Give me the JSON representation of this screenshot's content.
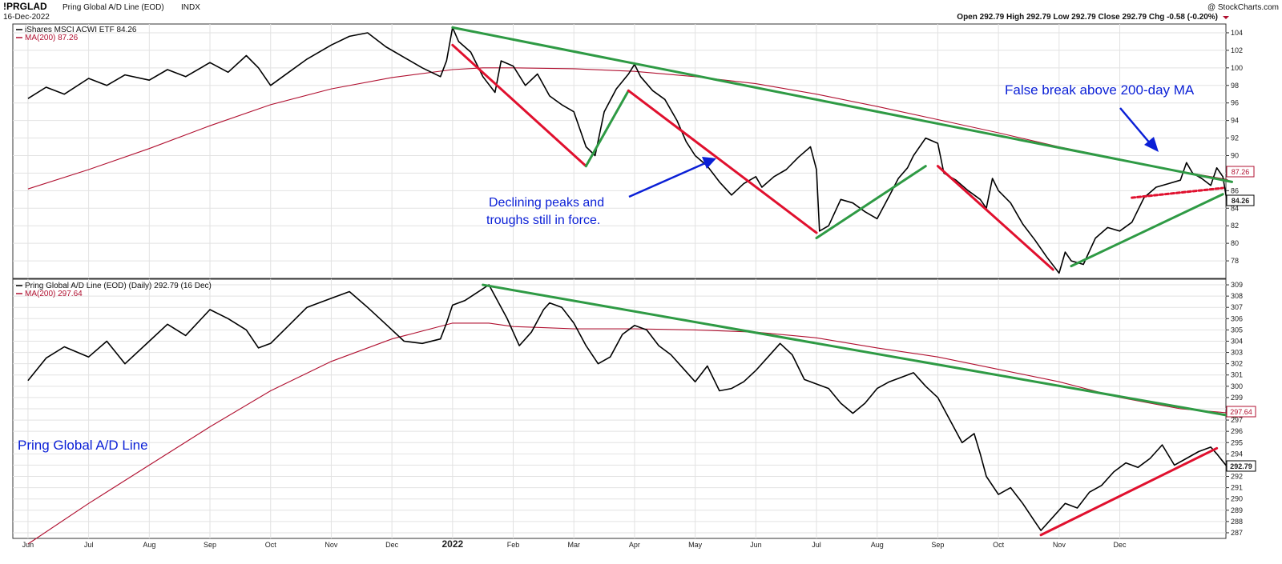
{
  "header": {
    "symbol": "!PRGLAD",
    "name": "Pring Global A/D Line (EOD)",
    "exchange": "INDX",
    "date": "16-Dec-2022",
    "copyright": "@ StockCharts.com",
    "ohlc": "Open 292.79  High 292.79  Low 292.79  Close 292.79  Chg -0.58 (-0.20%)"
  },
  "colors": {
    "price": "#000000",
    "ma": "#b01030",
    "green_trend": "#2e9a44",
    "red_trend": "#e0102e",
    "annotation": "#0a1fd6"
  },
  "x_axis": {
    "labels": [
      "Jun",
      "Jul",
      "Aug",
      "Sep",
      "Oct",
      "Nov",
      "Dec",
      "2022",
      "Feb",
      "Mar",
      "Apr",
      "May",
      "Jun",
      "Jul",
      "Aug",
      "Sep",
      "Oct",
      "Nov",
      "Dec"
    ]
  },
  "annotations": {
    "false_break": "False break above 200-day MA",
    "declining_1": "Declining peaks and",
    "declining_2": "troughs still in force.",
    "ad_line": "Pring Global A/D Line"
  },
  "chart_data": [
    {
      "type": "line",
      "panel": "top",
      "legend": [
        "iShares MSCI ACWI ETF 84.26",
        "MA(200) 87.26"
      ],
      "ylim": [
        76,
        105
      ],
      "y_ticks": [
        78,
        80,
        82,
        84,
        86,
        88,
        90,
        92,
        94,
        96,
        98,
        100,
        102,
        104
      ],
      "last_value": "84.26",
      "ma_value": "87.26",
      "series": [
        {
          "name": "iShares MSCI ACWI ETF",
          "points": [
            [
              0,
              96.5
            ],
            [
              0.3,
              97.8
            ],
            [
              0.6,
              97.0
            ],
            [
              1.0,
              98.8
            ],
            [
              1.3,
              98.0
            ],
            [
              1.6,
              99.2
            ],
            [
              2.0,
              98.6
            ],
            [
              2.3,
              99.8
            ],
            [
              2.6,
              99.0
            ],
            [
              3.0,
              100.6
            ],
            [
              3.3,
              99.5
            ],
            [
              3.6,
              101.4
            ],
            [
              3.8,
              100.0
            ],
            [
              4.0,
              98.0
            ],
            [
              4.3,
              99.5
            ],
            [
              4.6,
              101.0
            ],
            [
              5.0,
              102.6
            ],
            [
              5.3,
              103.6
            ],
            [
              5.6,
              104.0
            ],
            [
              5.9,
              102.4
            ],
            [
              6.2,
              101.2
            ],
            [
              6.5,
              100.0
            ],
            [
              6.8,
              99.0
            ],
            [
              6.9,
              100.8
            ],
            [
              7.0,
              104.6
            ],
            [
              7.1,
              103.0
            ],
            [
              7.3,
              101.8
            ],
            [
              7.5,
              99.0
            ],
            [
              7.7,
              97.2
            ],
            [
              7.8,
              100.8
            ],
            [
              8.0,
              100.2
            ],
            [
              8.2,
              98.0
            ],
            [
              8.4,
              99.3
            ],
            [
              8.6,
              96.8
            ],
            [
              8.8,
              95.8
            ],
            [
              9.0,
              95.0
            ],
            [
              9.2,
              91.0
            ],
            [
              9.35,
              90.0
            ],
            [
              9.5,
              95.0
            ],
            [
              9.7,
              97.6
            ],
            [
              9.9,
              99.3
            ],
            [
              10.0,
              100.4
            ],
            [
              10.1,
              99.0
            ],
            [
              10.3,
              97.4
            ],
            [
              10.5,
              96.4
            ],
            [
              10.7,
              94.0
            ],
            [
              10.85,
              91.6
            ],
            [
              11.0,
              90.0
            ],
            [
              11.2,
              88.8
            ],
            [
              11.4,
              87.0
            ],
            [
              11.6,
              85.5
            ],
            [
              11.8,
              86.8
            ],
            [
              12.0,
              87.6
            ],
            [
              12.1,
              86.4
            ],
            [
              12.3,
              87.6
            ],
            [
              12.5,
              88.4
            ],
            [
              12.7,
              89.8
            ],
            [
              12.9,
              91.0
            ],
            [
              13.0,
              88.4
            ],
            [
              13.05,
              81.4
            ],
            [
              13.2,
              82.0
            ],
            [
              13.4,
              85.0
            ],
            [
              13.6,
              84.6
            ],
            [
              13.8,
              83.6
            ],
            [
              14.0,
              82.8
            ],
            [
              14.2,
              85.4
            ],
            [
              14.35,
              87.4
            ],
            [
              14.5,
              88.6
            ],
            [
              14.6,
              90.0
            ],
            [
              14.8,
              92.0
            ],
            [
              15.0,
              91.4
            ],
            [
              15.1,
              88.0
            ],
            [
              15.3,
              87.2
            ],
            [
              15.5,
              86.0
            ],
            [
              15.7,
              85.0
            ],
            [
              15.8,
              84.0
            ],
            [
              15.9,
              87.4
            ],
            [
              16.0,
              86.0
            ],
            [
              16.2,
              84.6
            ],
            [
              16.4,
              82.2
            ],
            [
              16.6,
              80.4
            ],
            [
              16.8,
              78.4
            ],
            [
              17.0,
              76.6
            ],
            [
              17.1,
              79.0
            ],
            [
              17.2,
              78.0
            ],
            [
              17.4,
              77.6
            ],
            [
              17.6,
              80.6
            ],
            [
              17.8,
              81.8
            ],
            [
              18.0,
              81.4
            ],
            [
              18.2,
              82.4
            ],
            [
              18.4,
              85.2
            ],
            [
              18.6,
              86.4
            ],
            [
              18.8,
              86.8
            ],
            [
              19.0,
              87.2
            ],
            [
              19.1,
              89.2
            ],
            [
              19.2,
              88.0
            ],
            [
              19.35,
              87.4
            ],
            [
              19.5,
              86.6
            ],
            [
              19.6,
              88.6
            ],
            [
              19.7,
              87.6
            ],
            [
              19.78,
              84.26
            ]
          ]
        },
        {
          "name": "MA(200)",
          "points": [
            [
              0,
              86.2
            ],
            [
              1,
              88.4
            ],
            [
              2,
              90.8
            ],
            [
              3,
              93.4
            ],
            [
              4,
              95.8
            ],
            [
              5,
              97.6
            ],
            [
              6,
              98.9
            ],
            [
              7,
              99.8
            ],
            [
              7.5,
              100.0
            ],
            [
              8,
              100.0
            ],
            [
              9,
              99.9
            ],
            [
              10,
              99.6
            ],
            [
              11,
              99.0
            ],
            [
              12,
              98.2
            ],
            [
              13,
              97.0
            ],
            [
              14,
              95.6
            ],
            [
              15,
              94.1
            ],
            [
              16,
              92.6
            ],
            [
              17,
              91.0
            ],
            [
              18,
              89.6
            ],
            [
              19,
              88.2
            ],
            [
              19.78,
              87.26
            ]
          ]
        }
      ]
    },
    {
      "type": "line",
      "panel": "bottom",
      "legend": [
        "Pring Global A/D Line (EOD) (Daily) 292.79 (16 Dec)",
        "MA(200) 297.64"
      ],
      "ylim": [
        286.5,
        309.5
      ],
      "y_ticks": [
        287,
        288,
        289,
        290,
        291,
        292,
        293,
        294,
        295,
        296,
        297,
        298,
        299,
        300,
        301,
        302,
        303,
        304,
        305,
        306,
        307,
        308,
        309
      ],
      "last_value": "292.79",
      "ma_value": "297.64",
      "series": [
        {
          "name": "Pring Global A/D Line",
          "points": [
            [
              0,
              300.5
            ],
            [
              0.3,
              302.5
            ],
            [
              0.6,
              303.5
            ],
            [
              1.0,
              302.6
            ],
            [
              1.3,
              304.0
            ],
            [
              1.6,
              302.0
            ],
            [
              2.0,
              304.0
            ],
            [
              2.3,
              305.5
            ],
            [
              2.6,
              304.5
            ],
            [
              3.0,
              306.8
            ],
            [
              3.3,
              306.0
            ],
            [
              3.6,
              305.0
            ],
            [
              3.8,
              303.4
            ],
            [
              4.0,
              303.8
            ],
            [
              4.3,
              305.4
            ],
            [
              4.6,
              307.0
            ],
            [
              5.0,
              307.8
            ],
            [
              5.3,
              308.4
            ],
            [
              5.6,
              307.0
            ],
            [
              5.9,
              305.5
            ],
            [
              6.2,
              304.0
            ],
            [
              6.5,
              303.8
            ],
            [
              6.8,
              304.2
            ],
            [
              6.9,
              305.6
            ],
            [
              7.0,
              307.2
            ],
            [
              7.2,
              307.6
            ],
            [
              7.4,
              308.3
            ],
            [
              7.6,
              309.0
            ],
            [
              7.7,
              308.0
            ],
            [
              7.9,
              306.0
            ],
            [
              8.1,
              303.6
            ],
            [
              8.3,
              304.8
            ],
            [
              8.5,
              306.8
            ],
            [
              8.6,
              307.4
            ],
            [
              8.8,
              307.0
            ],
            [
              9.0,
              305.6
            ],
            [
              9.2,
              303.6
            ],
            [
              9.4,
              302.0
            ],
            [
              9.6,
              302.6
            ],
            [
              9.8,
              304.6
            ],
            [
              10.0,
              305.4
            ],
            [
              10.2,
              305.0
            ],
            [
              10.4,
              303.6
            ],
            [
              10.6,
              302.8
            ],
            [
              10.8,
              301.6
            ],
            [
              11.0,
              300.4
            ],
            [
              11.2,
              301.8
            ],
            [
              11.4,
              299.6
            ],
            [
              11.6,
              299.8
            ],
            [
              11.8,
              300.4
            ],
            [
              12.0,
              301.4
            ],
            [
              12.2,
              302.6
            ],
            [
              12.4,
              303.8
            ],
            [
              12.6,
              302.8
            ],
            [
              12.8,
              300.6
            ],
            [
              13.0,
              300.2
            ],
            [
              13.2,
              299.8
            ],
            [
              13.4,
              298.5
            ],
            [
              13.6,
              297.6
            ],
            [
              13.8,
              298.5
            ],
            [
              14.0,
              299.8
            ],
            [
              14.2,
              300.4
            ],
            [
              14.4,
              300.8
            ],
            [
              14.6,
              301.2
            ],
            [
              14.8,
              300.0
            ],
            [
              15.0,
              299.0
            ],
            [
              15.2,
              297.0
            ],
            [
              15.4,
              295.0
            ],
            [
              15.6,
              295.8
            ],
            [
              15.7,
              294.0
            ],
            [
              15.8,
              292.0
            ],
            [
              16.0,
              290.4
            ],
            [
              16.2,
              291.0
            ],
            [
              16.4,
              289.6
            ],
            [
              16.6,
              288.0
            ],
            [
              16.7,
              287.2
            ],
            [
              16.9,
              288.4
            ],
            [
              17.1,
              289.6
            ],
            [
              17.3,
              289.2
            ],
            [
              17.5,
              290.6
            ],
            [
              17.7,
              291.2
            ],
            [
              17.9,
              292.4
            ],
            [
              18.1,
              293.2
            ],
            [
              18.3,
              292.8
            ],
            [
              18.5,
              293.6
            ],
            [
              18.7,
              294.8
            ],
            [
              18.9,
              293.0
            ],
            [
              19.1,
              293.6
            ],
            [
              19.3,
              294.2
            ],
            [
              19.5,
              294.6
            ],
            [
              19.6,
              294.0
            ],
            [
              19.78,
              292.79
            ]
          ]
        },
        {
          "name": "MA(200)",
          "points": [
            [
              0,
              286.0
            ],
            [
              1,
              289.6
            ],
            [
              2,
              293.0
            ],
            [
              3,
              296.4
            ],
            [
              4,
              299.6
            ],
            [
              5,
              302.2
            ],
            [
              6,
              304.2
            ],
            [
              7,
              305.6
            ],
            [
              7.6,
              305.6
            ],
            [
              8,
              305.3
            ],
            [
              8.5,
              305.2
            ],
            [
              9,
              305.1
            ],
            [
              10,
              305.1
            ],
            [
              11,
              305.0
            ],
            [
              12,
              304.8
            ],
            [
              13,
              304.3
            ],
            [
              14,
              303.4
            ],
            [
              15,
              302.6
            ],
            [
              16,
              301.5
            ],
            [
              17,
              300.4
            ],
            [
              18,
              299.0
            ],
            [
              19,
              298.0
            ],
            [
              19.78,
              297.64
            ]
          ]
        }
      ]
    }
  ]
}
